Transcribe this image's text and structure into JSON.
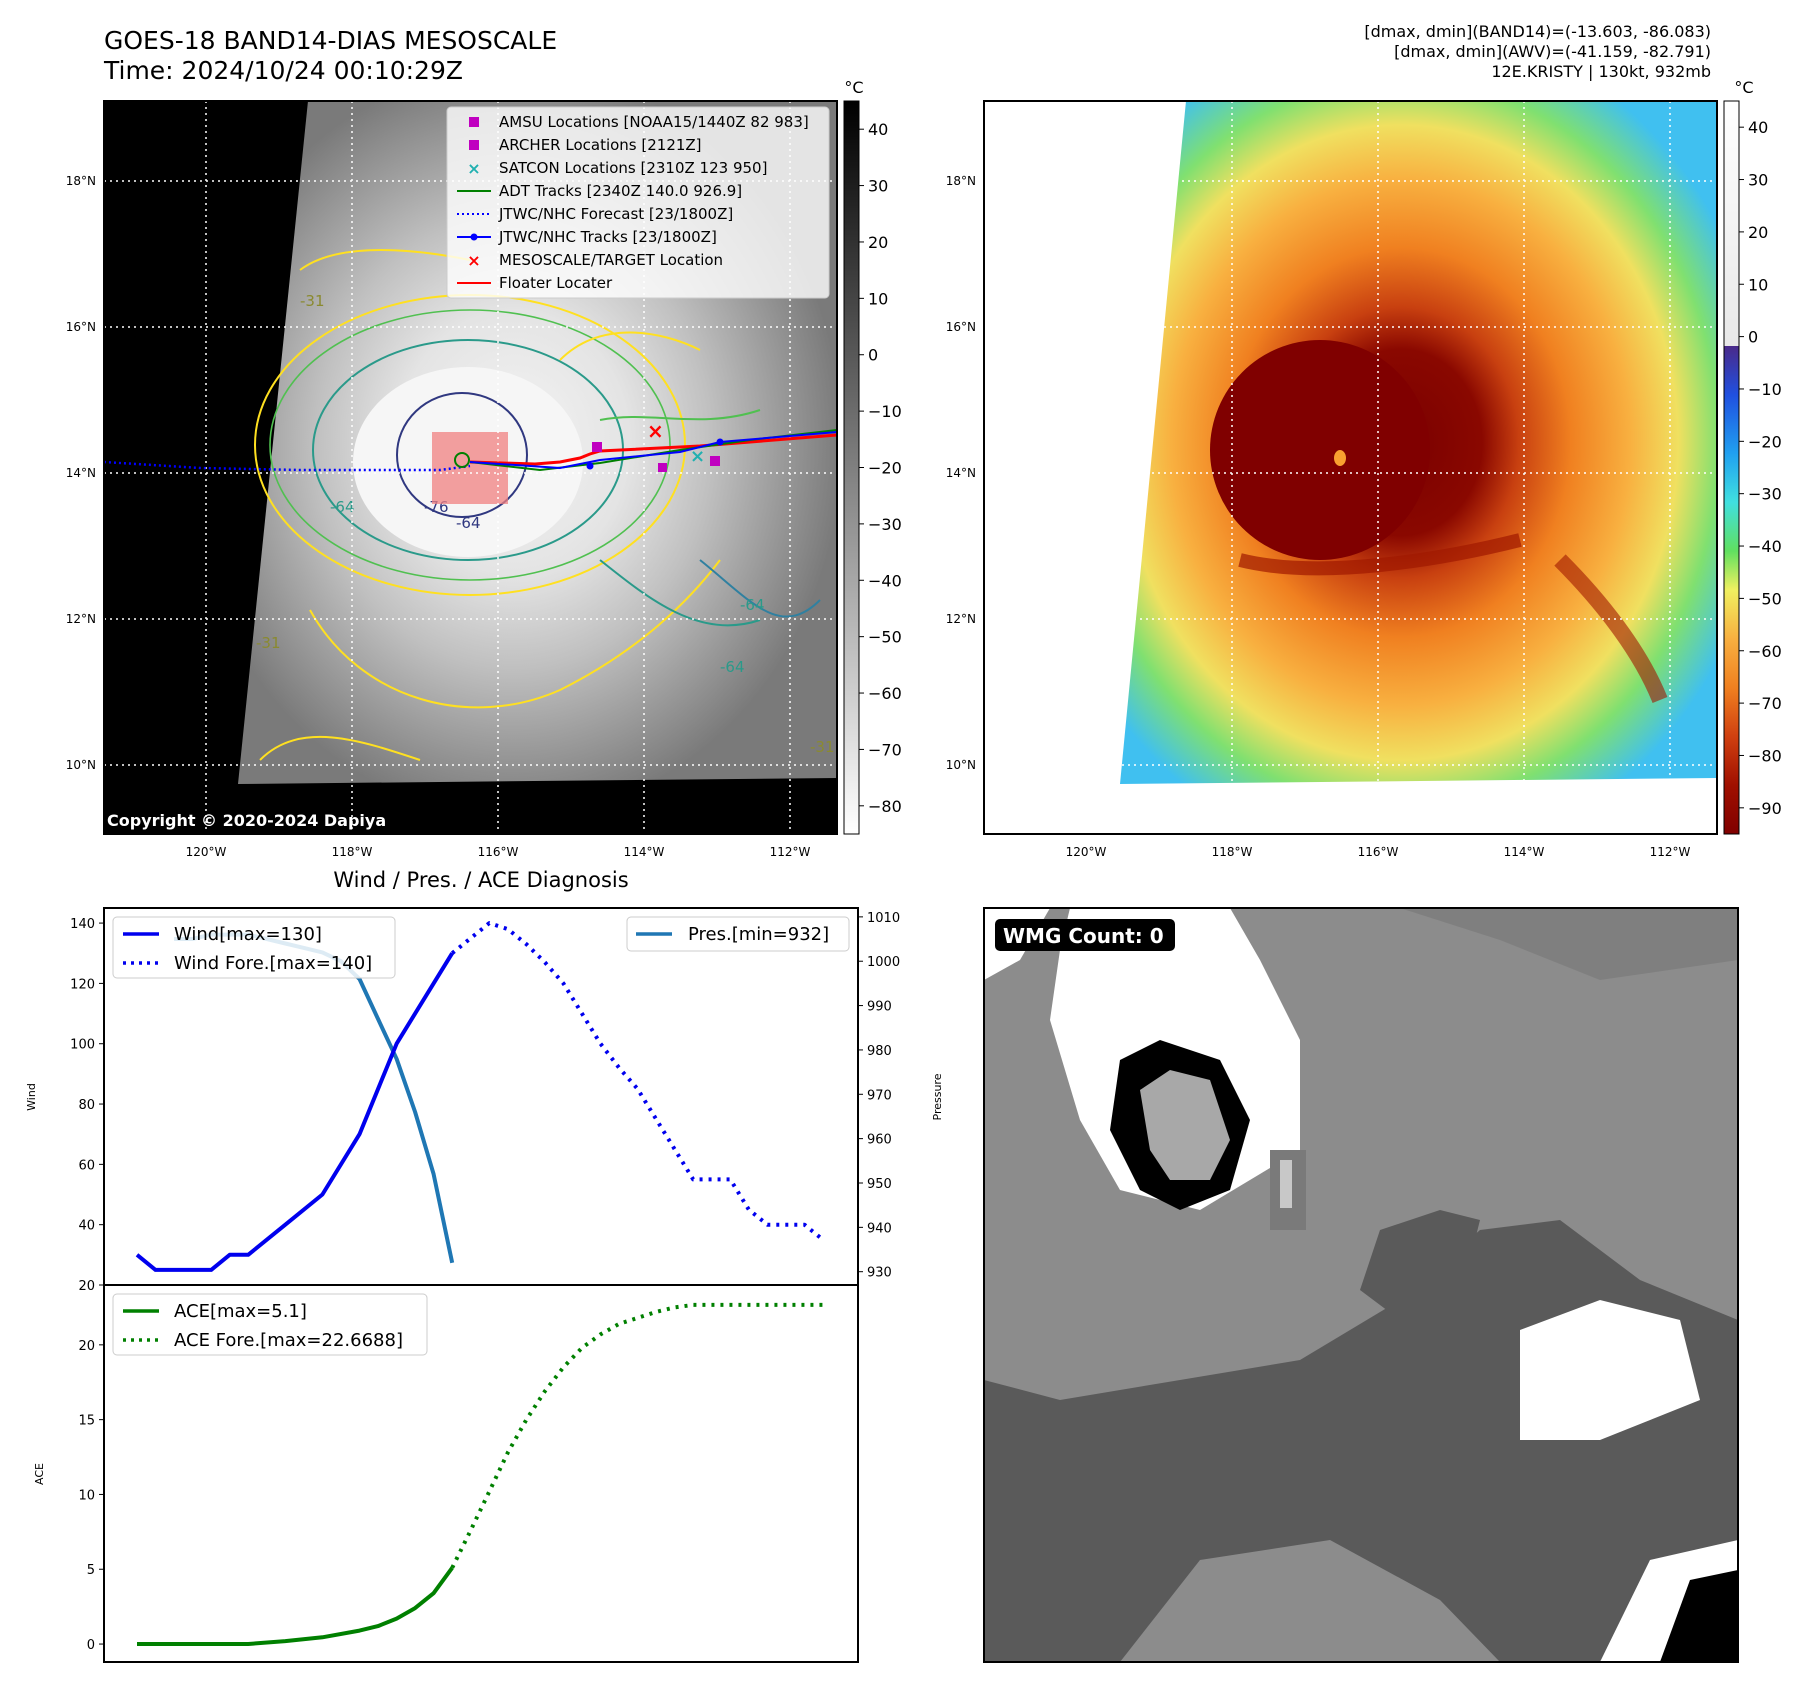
{
  "header": {
    "title_line1": "GOES-18 BAND14-DIAS MESOSCALE",
    "title_line2": "Time: 2024/10/24 00:10:29Z",
    "info_line1": "[dmax, dmin](BAND14)=(-13.603, -86.083)",
    "info_line2": "[dmax, dmin](AWV)=(-41.159, -82.791)",
    "info_line3": "12E.KRISTY | 130kt, 932mb"
  },
  "map_left": {
    "lat_ticks": [
      "18°N",
      "16°N",
      "14°N",
      "12°N",
      "10°N"
    ],
    "lon_ticks": [
      "120°W",
      "118°W",
      "116°W",
      "114°W",
      "112°W"
    ],
    "copyright": "Copyright © 2020-2024 Dapiya",
    "contour_labels": [
      "-31",
      "-64",
      "-76",
      "-64",
      "-31",
      "-64",
      "-64",
      "-31"
    ],
    "legend": [
      {
        "label": "AMSU Locations [NOAA15/1440Z 82 983]",
        "color": "#c000c0",
        "marker": "square"
      },
      {
        "label": "ARCHER Locations [2121Z]",
        "color": "#c000c0",
        "marker": "square"
      },
      {
        "label": "SATCON Locations [2310Z 123 950]",
        "color": "#20b0b0",
        "marker": "x"
      },
      {
        "label": "ADT Tracks [2340Z 140.0 926.9]",
        "color": "#008000",
        "marker": "line"
      },
      {
        "label": "JTWC/NHC Forecast [23/1800Z]",
        "color": "#0000ff",
        "marker": "dotted"
      },
      {
        "label": "JTWC/NHC Tracks [23/1800Z]",
        "color": "#0000ff",
        "marker": "line-dot"
      },
      {
        "label": "MESOSCALE/TARGET Location",
        "color": "#ff0000",
        "marker": "x"
      },
      {
        "label": "Floater Locater",
        "color": "#ff0000",
        "marker": "line"
      }
    ],
    "colorbar": {
      "unit": "°C",
      "ticks": [
        "40",
        "30",
        "20",
        "10",
        "0",
        "−10",
        "−20",
        "−30",
        "−40",
        "−50",
        "−60",
        "−70",
        "−80"
      ]
    }
  },
  "map_right": {
    "lat_ticks": [
      "18°N",
      "16°N",
      "14°N",
      "12°N",
      "10°N"
    ],
    "lon_ticks": [
      "120°W",
      "118°W",
      "116°W",
      "114°W",
      "112°W"
    ],
    "colorbar": {
      "unit": "°C",
      "ticks": [
        "40",
        "30",
        "20",
        "10",
        "0",
        "−10",
        "−20",
        "−30",
        "−40",
        "−50",
        "−60",
        "−70",
        "−80",
        "−90"
      ]
    }
  },
  "wmg": {
    "label": "WMG Count: 0"
  },
  "colors": {
    "wind": "#0000ee",
    "pressure": "#1f77b4",
    "ace": "#008000"
  },
  "chart_data": [
    {
      "type": "line",
      "title": "Wind / Pres. / ACE Diagnosis",
      "ylabel": "Wind",
      "ylim": [
        20,
        145
      ],
      "y_ticks": [
        20,
        40,
        60,
        80,
        100,
        120,
        140
      ],
      "y2label": "Pressure",
      "y2lim": [
        927,
        1012
      ],
      "y2_ticks": [
        930,
        940,
        950,
        960,
        970,
        980,
        990,
        1000,
        1010
      ],
      "series": [
        {
          "name": "Wind[max=130]",
          "axis": "left",
          "style": "solid",
          "x": [
            0,
            1,
            2,
            3,
            4,
            5,
            6,
            8,
            10,
            12,
            14,
            16,
            17
          ],
          "values": [
            30,
            25,
            25,
            25,
            25,
            30,
            30,
            40,
            50,
            70,
            100,
            120,
            130
          ]
        },
        {
          "name": "Wind Fore.[max=140]",
          "axis": "left",
          "style": "dotted",
          "x": [
            17,
            18,
            19,
            20,
            21,
            22,
            23,
            24,
            25,
            26,
            27,
            28,
            29,
            30,
            31,
            32,
            33,
            34,
            35,
            36,
            37
          ],
          "values": [
            130,
            135,
            140,
            138,
            133,
            127,
            120,
            110,
            100,
            92,
            85,
            75,
            65,
            55,
            55,
            55,
            45,
            40,
            40,
            40,
            35
          ]
        },
        {
          "name": "Pres.[min=932]",
          "axis": "right",
          "style": "solid",
          "x": [
            2,
            3,
            4,
            5,
            6,
            7,
            8,
            9,
            10,
            11,
            12,
            13,
            14,
            15,
            16,
            17
          ],
          "values": [
            1005,
            1005,
            1006,
            1006,
            1006,
            1005,
            1004,
            1003,
            1002,
            1000,
            996,
            987,
            978,
            966,
            952,
            932
          ]
        }
      ]
    },
    {
      "type": "line",
      "ylabel": "ACE",
      "ylim": [
        -1.2,
        24
      ],
      "y_ticks": [
        0,
        5,
        10,
        15,
        20
      ],
      "series": [
        {
          "name": "ACE[max=5.1]",
          "style": "solid",
          "x": [
            0,
            1,
            2,
            3,
            4,
            5,
            6,
            8,
            10,
            12,
            13,
            14,
            15,
            16,
            17
          ],
          "values": [
            0,
            0,
            0,
            0,
            0,
            0,
            0,
            0.2,
            0.45,
            0.9,
            1.2,
            1.7,
            2.4,
            3.4,
            5.1
          ]
        },
        {
          "name": "ACE Fore.[max=22.6688]",
          "style": "dotted",
          "x": [
            17,
            18,
            19,
            20,
            21,
            22,
            23,
            24,
            25,
            26,
            27,
            28,
            29,
            30,
            31,
            32,
            33,
            34,
            35,
            36,
            37
          ],
          "values": [
            5.1,
            7.6,
            10.2,
            12.8,
            15.0,
            16.9,
            18.5,
            19.8,
            20.7,
            21.4,
            21.8,
            22.2,
            22.5,
            22.67,
            22.67,
            22.67,
            22.67,
            22.67,
            22.67,
            22.67,
            22.67
          ]
        }
      ]
    }
  ]
}
